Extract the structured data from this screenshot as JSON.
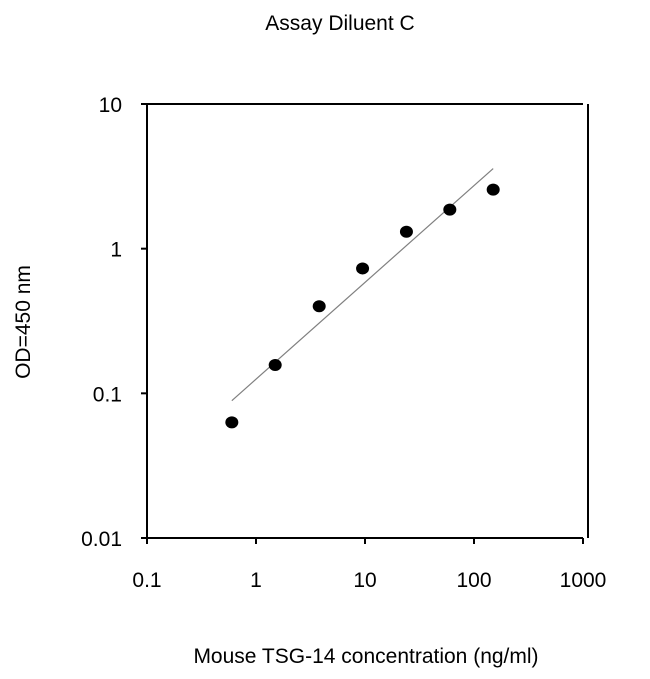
{
  "chart_data": {
    "type": "scatter",
    "title": "Assay Diluent C",
    "xlabel": "Mouse TSG-14 concentration (ng/ml)",
    "ylabel": "OD=450 nm",
    "xscale": "log",
    "yscale": "log",
    "xlim": [
      0.1,
      1000
    ],
    "ylim": [
      0.01,
      10
    ],
    "xticks": [
      "0.1",
      "1",
      "10",
      "100",
      "1000"
    ],
    "yticks": [
      "0.01",
      "0.1",
      "1",
      "10"
    ],
    "grid": false,
    "legend": "none",
    "series": [
      {
        "x": [
          0.6,
          1.5,
          3.8,
          9.5,
          24,
          60,
          150
        ],
        "y": [
          0.063,
          0.157,
          0.4,
          0.73,
          1.31,
          1.86,
          2.56
        ],
        "color": "#000000"
      }
    ],
    "fit_line": {
      "x": [
        0.6,
        150
      ],
      "y": [
        0.089,
        3.58
      ],
      "color": "#808080"
    }
  }
}
